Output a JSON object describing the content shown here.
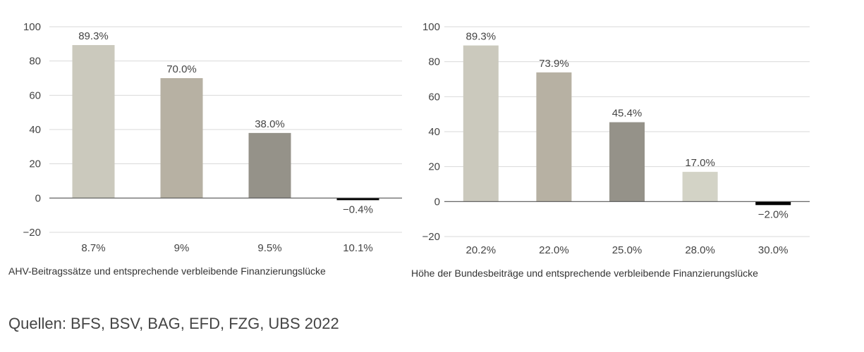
{
  "chart_data": [
    {
      "type": "bar",
      "categories": [
        "8.7%",
        "9%",
        "9.5%",
        "10.1%"
      ],
      "values": [
        89.3,
        70.0,
        38.0,
        -0.4
      ],
      "value_labels": [
        "89.3%",
        "70.0%",
        "38.0%",
        "−0.4%"
      ],
      "bar_colors": [
        "#cbc9bd",
        "#b7b1a3",
        "#959289",
        "#000000"
      ],
      "yticks": [
        100,
        80,
        60,
        40,
        20,
        0,
        -20
      ],
      "ytick_labels": [
        "100",
        "80",
        "60",
        "40",
        "20",
        "0",
        "−20"
      ],
      "ylim": [
        -20,
        100
      ],
      "grid": true,
      "xlabel": "AHV-Beitragssätze und entsprechende verbleibende Finanzierungslücke"
    },
    {
      "type": "bar",
      "categories": [
        "20.2%",
        "22.0%",
        "25.0%",
        "28.0%",
        "30.0%"
      ],
      "values": [
        89.3,
        73.9,
        45.4,
        17.0,
        -2.0
      ],
      "value_labels": [
        "89.3%",
        "73.9%",
        "45.4%",
        "17.0%",
        "−2.0%"
      ],
      "bar_colors": [
        "#cbc9bd",
        "#b7b1a3",
        "#959289",
        "#d3d3c6",
        "#000000"
      ],
      "yticks": [
        100,
        80,
        60,
        40,
        20,
        0,
        -20
      ],
      "ytick_labels": [
        "100",
        "80",
        "60",
        "40",
        "20",
        "0",
        "−20"
      ],
      "ylim": [
        -20,
        100
      ],
      "grid": true,
      "xlabel": "Höhe der Bundesbeiträge und entsprechende verbleibende Finanzierungslücke"
    }
  ],
  "source": "Quellen: BFS, BSV, BAG, EFD, FZG, UBS 2022"
}
